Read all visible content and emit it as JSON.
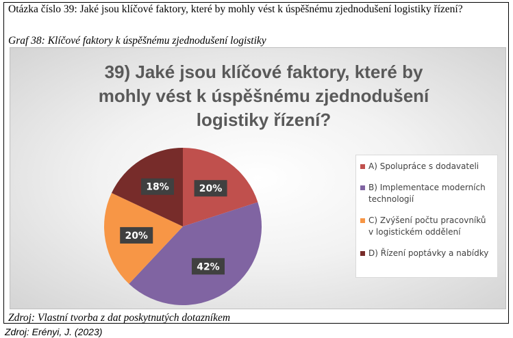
{
  "question": "Otázka číslo 39: Jaké jsou klíčové faktory, které by mohly vést k úspěšnému zjednodušení logistiky řízení?",
  "figure_caption": "Graf 38: Klíčové faktory k úspěšnému zjednodušení logistiky",
  "chart_data": {
    "type": "pie",
    "title": "39) Jaké jsou klíčové faktory, které by mohly vést k úspěšnému zjednodušení logistiky řízení?",
    "categories": [
      "A) Spolupráce s dodavateli",
      "B) Implementace moderních technologií",
      "C) Zvýšení počtu pracovníků v logistickém oddělení",
      "D) Řízení poptávky a nabídky"
    ],
    "values": [
      20,
      42,
      20,
      18
    ],
    "value_labels": [
      "20%",
      "42%",
      "20%",
      "18%"
    ],
    "colors": [
      "#c0504d",
      "#8064a2",
      "#f79646",
      "#772c2a"
    ],
    "legend": "right"
  },
  "source_note": "Zdroj: Vlastní tvorba z dat poskytnutých dotazníkem",
  "citation": "Zdroj: Erényi, J. (2023)"
}
